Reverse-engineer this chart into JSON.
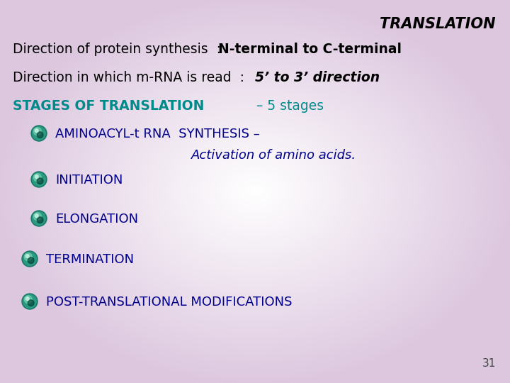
{
  "title": "TRANSLATION",
  "line1_plain": "Direction of protein synthesis  : ",
  "line1_bold": "N-terminal to C-terminal",
  "line2_plain": "Direction in which m-RNA is read  :  ",
  "line2_bold": "5’ to 3’ direction",
  "stages_heading_bold": "STAGES OF TRANSLATION",
  "stages_heading_plain": " – 5 stages",
  "bullet1_line1": "AMINOACYL-t RNA  SYNTHESIS –",
  "bullet1_line2": "Activation of amino acids.",
  "bullet2": "INITIATION",
  "bullet3": "ELONGATION",
  "bullet4": "TERMINATION",
  "bullet5": "POST-TRANSLATIONAL MODIFICATIONS",
  "page_number": "31",
  "title_color": "#000000",
  "line1_color": "#000000",
  "line2_color": "#000000",
  "stages_color": "#008B8B",
  "bullet_text_color": "#00008B",
  "bullet_outer_color": "#1a7a6a",
  "bullet_mid_color": "#2aaa8a",
  "bullet_highlight_color": "#80e0c0",
  "bullet_dark_color": "#003030"
}
